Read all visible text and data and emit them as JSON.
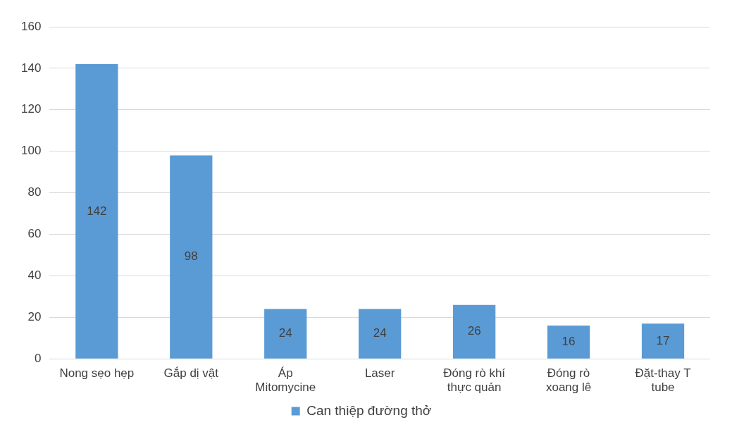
{
  "chart_data": {
    "type": "bar",
    "categories": [
      "Nong sẹo hẹp",
      "Gắp dị vật",
      "Áp Mitomycine",
      "Laser",
      "Đóng rò khí thực quản",
      "Đóng rò xoang lê",
      "Đặt-thay T tube"
    ],
    "series": [
      {
        "name": "Can thiệp đường thở",
        "color": "#5b9bd5",
        "values": [
          142,
          98,
          24,
          24,
          26,
          16,
          17
        ]
      }
    ],
    "ylim": [
      0,
      160
    ],
    "yticks": [
      0,
      20,
      40,
      60,
      80,
      100,
      120,
      140,
      160
    ],
    "grid": "y",
    "legend": "bottom",
    "data_labels": true
  }
}
